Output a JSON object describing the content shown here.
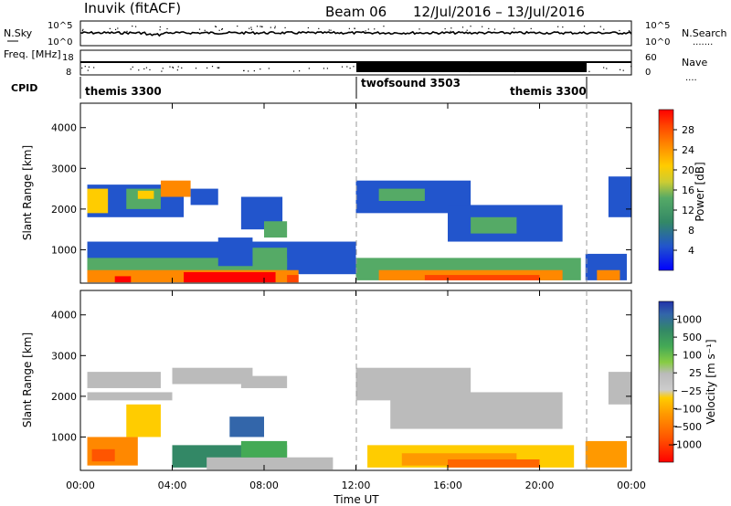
{
  "header": {
    "station": "Inuvik (fitACF)",
    "beam": "Beam 06",
    "date_range": "12/Jul/2016 – 13/Jul/2016"
  },
  "chart_data": [
    {
      "type": "line",
      "panel": "noise",
      "ylabel_left": "N.Sky",
      "ylabel_right": "N.Search",
      "yticks_left": [
        "10^5",
        "10^0"
      ],
      "yticks_right": [
        "10^5",
        "10^0"
      ],
      "legend_right": "......."
    },
    {
      "type": "line",
      "panel": "frequency",
      "ylabel_left": "Freq. [MHz]",
      "yticks_left": [
        "18",
        "8"
      ],
      "yticks_right": [
        "60",
        "0"
      ],
      "ylabel_right": "Nave",
      "legend_right": "...."
    },
    {
      "type": "table",
      "panel": "cpid",
      "label": "CPID",
      "segments": [
        {
          "name": "themis 3300",
          "start_h": 0,
          "end_h": 12
        },
        {
          "name": "twofsound 3503",
          "start_h": 12,
          "end_h": 21.9
        },
        {
          "name": "themis 3300",
          "start_h": 21.9,
          "end_h": 24
        }
      ]
    },
    {
      "type": "heatmap",
      "panel": "power",
      "ylabel": "Slant Range [km]",
      "yticks": [
        1000,
        2000,
        3000,
        4000
      ],
      "ylim": [
        180,
        4600
      ],
      "colorbar_label": "Power [dB]",
      "colorbar_ticks": [
        "28",
        "24",
        "20",
        "16",
        "12",
        "8",
        "4"
      ],
      "colorbar_colors": [
        "#ff0000",
        "#ff4400",
        "#ff8800",
        "#ffaa00",
        "#ffcc00",
        "#cccc33",
        "#88cc44",
        "#44aa66",
        "#338866",
        "#336699",
        "#2244cc",
        "#0000ff"
      ]
    },
    {
      "type": "heatmap",
      "panel": "velocity",
      "ylabel": "Slant Range [km]",
      "yticks": [
        1000,
        2000,
        3000,
        4000
      ],
      "ylim": [
        180,
        4600
      ],
      "colorbar_label": "Velocity [m s⁻¹]",
      "colorbar_ticks": [
        "1000",
        "500",
        "100",
        "25",
        "−25",
        "−100",
        "−500",
        "−1000"
      ],
      "colorbar_colors": [
        "#2233aa",
        "#3366aa",
        "#338866",
        "#44aa55",
        "#88cc44",
        "#bbbbbb",
        "#dddddd",
        "#ffcc00",
        "#ff9900",
        "#ff6600",
        "#ff3300",
        "#ff0000"
      ]
    }
  ],
  "xaxis": {
    "label": "Time UT",
    "ticks": [
      "00:00",
      "04:00",
      "08:00",
      "12:00",
      "16:00",
      "20:00",
      "00:00"
    ]
  }
}
